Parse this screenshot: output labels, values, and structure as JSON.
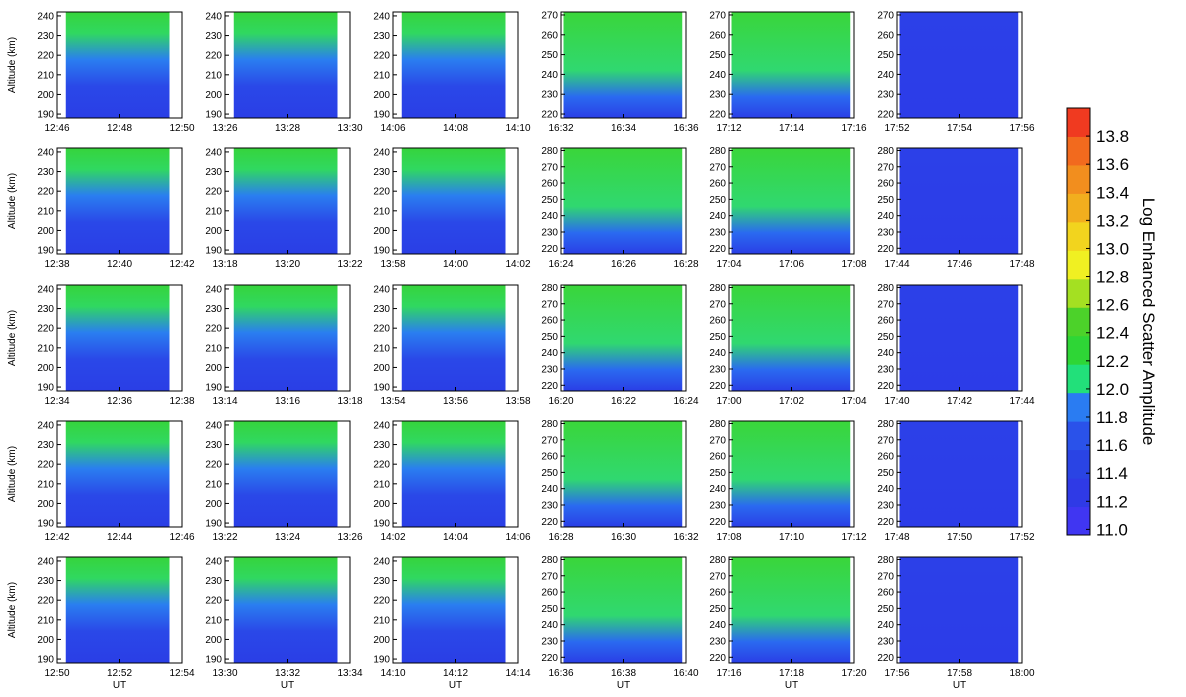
{
  "chart_data": [
    {
      "type": "heatmap",
      "ylabel": "Altitude (km)",
      "xlim": [
        766,
        770
      ],
      "xticks": [
        {
          "value": 766,
          "label": "12:46"
        },
        {
          "value": 768,
          "label": "12:48"
        },
        {
          "value": 770,
          "label": "12:50"
        }
      ],
      "ylim": [
        188,
        242
      ],
      "yticks": [
        190,
        200,
        210,
        220,
        230,
        240
      ]
    },
    {
      "type": "heatmap",
      "xlim": [
        806,
        810
      ],
      "xticks": [
        {
          "value": 806,
          "label": "13:26"
        },
        {
          "value": 808,
          "label": "13:28"
        },
        {
          "value": 810,
          "label": "13:30"
        }
      ],
      "ylim": [
        188,
        242
      ],
      "yticks": [
        190,
        200,
        210,
        220,
        230,
        240
      ]
    },
    {
      "type": "heatmap",
      "xlim": [
        846,
        850
      ],
      "xticks": [
        {
          "value": 846,
          "label": "14:06"
        },
        {
          "value": 848,
          "label": "14:08"
        },
        {
          "value": 850,
          "label": "14:10"
        }
      ],
      "ylim": [
        188,
        242
      ],
      "yticks": [
        190,
        200,
        210,
        220,
        230,
        240
      ]
    },
    {
      "type": "heatmap",
      "xlim": [
        992,
        996
      ],
      "xticks": [
        {
          "value": 992,
          "label": "16:32"
        },
        {
          "value": 994,
          "label": "16:34"
        },
        {
          "value": 996,
          "label": "16:36"
        }
      ],
      "ylim": [
        218,
        271.5
      ],
      "yticks": [
        220,
        230,
        240,
        250,
        260,
        270
      ]
    },
    {
      "type": "heatmap",
      "xlim": [
        1032,
        1036
      ],
      "xticks": [
        {
          "value": 1032,
          "label": "17:12"
        },
        {
          "value": 1034,
          "label": "17:14"
        },
        {
          "value": 1036,
          "label": "17:16"
        }
      ],
      "ylim": [
        218,
        271.5
      ],
      "yticks": [
        220,
        230,
        240,
        250,
        260,
        270
      ]
    },
    {
      "type": "heatmap",
      "xlim": [
        1072,
        1076
      ],
      "xticks": [
        {
          "value": 1072,
          "label": "17:52"
        },
        {
          "value": 1074,
          "label": "17:54"
        },
        {
          "value": 1076,
          "label": "17:56"
        }
      ],
      "ylim": [
        218,
        271.5
      ],
      "yticks": [
        220,
        230,
        240,
        250,
        260,
        270
      ]
    },
    {
      "type": "heatmap",
      "ylabel": "Altitude (km)",
      "xlim": [
        758,
        762
      ],
      "xticks": [
        {
          "value": 758,
          "label": "12:38"
        },
        {
          "value": 760,
          "label": "12:40"
        },
        {
          "value": 762,
          "label": "12:42"
        }
      ],
      "ylim": [
        188,
        242
      ],
      "yticks": [
        190,
        200,
        210,
        220,
        230,
        240
      ]
    },
    {
      "type": "heatmap",
      "xlim": [
        798,
        802
      ],
      "xticks": [
        {
          "value": 798,
          "label": "13:18"
        },
        {
          "value": 800,
          "label": "13:20"
        },
        {
          "value": 802,
          "label": "13:22"
        }
      ],
      "ylim": [
        188,
        242
      ],
      "yticks": [
        190,
        200,
        210,
        220,
        230,
        240
      ]
    },
    {
      "type": "heatmap",
      "xlim": [
        838,
        842
      ],
      "xticks": [
        {
          "value": 838,
          "label": "13:58"
        },
        {
          "value": 840,
          "label": "14:00"
        },
        {
          "value": 842,
          "label": "14:02"
        }
      ],
      "ylim": [
        188,
        242
      ],
      "yticks": [
        190,
        200,
        210,
        220,
        230,
        240
      ]
    },
    {
      "type": "heatmap",
      "xlim": [
        984,
        988
      ],
      "xticks": [
        {
          "value": 984,
          "label": "16:24"
        },
        {
          "value": 986,
          "label": "16:26"
        },
        {
          "value": 988,
          "label": "16:28"
        }
      ],
      "ylim": [
        216.5,
        281.5
      ],
      "yticks": [
        220,
        230,
        240,
        250,
        260,
        270,
        280
      ]
    },
    {
      "type": "heatmap",
      "xlim": [
        1024,
        1028
      ],
      "xticks": [
        {
          "value": 1024,
          "label": "17:04"
        },
        {
          "value": 1026,
          "label": "17:06"
        },
        {
          "value": 1028,
          "label": "17:08"
        }
      ],
      "ylim": [
        216.5,
        281.5
      ],
      "yticks": [
        220,
        230,
        240,
        250,
        260,
        270,
        280
      ]
    },
    {
      "type": "heatmap",
      "xlim": [
        1064,
        1068
      ],
      "xticks": [
        {
          "value": 1064,
          "label": "17:44"
        },
        {
          "value": 1066,
          "label": "17:46"
        },
        {
          "value": 1068,
          "label": "17:48"
        }
      ],
      "ylim": [
        216.5,
        281.5
      ],
      "yticks": [
        220,
        230,
        240,
        250,
        260,
        270,
        280
      ]
    },
    {
      "type": "heatmap",
      "ylabel": "Altitude (km)",
      "xlim": [
        754,
        758
      ],
      "xticks": [
        {
          "value": 754,
          "label": "12:34"
        },
        {
          "value": 756,
          "label": "12:36"
        },
        {
          "value": 758,
          "label": "12:38"
        }
      ],
      "ylim": [
        188,
        242
      ],
      "yticks": [
        190,
        200,
        210,
        220,
        230,
        240
      ]
    },
    {
      "type": "heatmap",
      "xlim": [
        794,
        798
      ],
      "xticks": [
        {
          "value": 794,
          "label": "13:14"
        },
        {
          "value": 796,
          "label": "13:16"
        },
        {
          "value": 798,
          "label": "13:18"
        }
      ],
      "ylim": [
        188,
        242
      ],
      "yticks": [
        190,
        200,
        210,
        220,
        230,
        240
      ]
    },
    {
      "type": "heatmap",
      "xlim": [
        834,
        838
      ],
      "xticks": [
        {
          "value": 834,
          "label": "13:54"
        },
        {
          "value": 836,
          "label": "13:56"
        },
        {
          "value": 838,
          "label": "13:58"
        }
      ],
      "ylim": [
        188,
        242
      ],
      "yticks": [
        190,
        200,
        210,
        220,
        230,
        240
      ]
    },
    {
      "type": "heatmap",
      "xlim": [
        980,
        984
      ],
      "xticks": [
        {
          "value": 980,
          "label": "16:20"
        },
        {
          "value": 982,
          "label": "16:22"
        },
        {
          "value": 984,
          "label": "16:24"
        }
      ],
      "ylim": [
        216.5,
        281.5
      ],
      "yticks": [
        220,
        230,
        240,
        250,
        260,
        270,
        280
      ]
    },
    {
      "type": "heatmap",
      "xlim": [
        1020,
        1024
      ],
      "xticks": [
        {
          "value": 1020,
          "label": "17:00"
        },
        {
          "value": 1022,
          "label": "17:02"
        },
        {
          "value": 1024,
          "label": "17:04"
        }
      ],
      "ylim": [
        216.5,
        281.5
      ],
      "yticks": [
        220,
        230,
        240,
        250,
        260,
        270,
        280
      ]
    },
    {
      "type": "heatmap",
      "xlim": [
        1060,
        1064
      ],
      "xticks": [
        {
          "value": 1060,
          "label": "17:40"
        },
        {
          "value": 1062,
          "label": "17:42"
        },
        {
          "value": 1064,
          "label": "17:44"
        }
      ],
      "ylim": [
        216.5,
        281.5
      ],
      "yticks": [
        220,
        230,
        240,
        250,
        260,
        270,
        280
      ]
    },
    {
      "type": "heatmap",
      "ylabel": "Altitude (km)",
      "xlim": [
        762,
        766
      ],
      "xticks": [
        {
          "value": 762,
          "label": "12:42"
        },
        {
          "value": 764,
          "label": "12:44"
        },
        {
          "value": 766,
          "label": "12:46"
        }
      ],
      "ylim": [
        188,
        242
      ],
      "yticks": [
        190,
        200,
        210,
        220,
        230,
        240
      ]
    },
    {
      "type": "heatmap",
      "xlim": [
        802,
        806
      ],
      "xticks": [
        {
          "value": 802,
          "label": "13:22"
        },
        {
          "value": 804,
          "label": "13:24"
        },
        {
          "value": 806,
          "label": "13:26"
        }
      ],
      "ylim": [
        188,
        242
      ],
      "yticks": [
        190,
        200,
        210,
        220,
        230,
        240
      ]
    },
    {
      "type": "heatmap",
      "xlim": [
        842,
        846
      ],
      "xticks": [
        {
          "value": 842,
          "label": "14:02"
        },
        {
          "value": 844,
          "label": "14:04"
        },
        {
          "value": 846,
          "label": "14:06"
        }
      ],
      "ylim": [
        188,
        242
      ],
      "yticks": [
        190,
        200,
        210,
        220,
        230,
        240
      ]
    },
    {
      "type": "heatmap",
      "xlim": [
        988,
        992
      ],
      "xticks": [
        {
          "value": 988,
          "label": "16:28"
        },
        {
          "value": 990,
          "label": "16:30"
        },
        {
          "value": 992,
          "label": "16:32"
        }
      ],
      "ylim": [
        216.5,
        281.5
      ],
      "yticks": [
        220,
        230,
        240,
        250,
        260,
        270,
        280
      ]
    },
    {
      "type": "heatmap",
      "xlim": [
        1028,
        1032
      ],
      "xticks": [
        {
          "value": 1028,
          "label": "17:08"
        },
        {
          "value": 1030,
          "label": "17:10"
        },
        {
          "value": 1032,
          "label": "17:12"
        }
      ],
      "ylim": [
        216.5,
        281.5
      ],
      "yticks": [
        220,
        230,
        240,
        250,
        260,
        270,
        280
      ]
    },
    {
      "type": "heatmap",
      "xlim": [
        1068,
        1072
      ],
      "xticks": [
        {
          "value": 1068,
          "label": "17:48"
        },
        {
          "value": 1070,
          "label": "17:50"
        },
        {
          "value": 1072,
          "label": "17:52"
        }
      ],
      "ylim": [
        216.5,
        281.5
      ],
      "yticks": [
        220,
        230,
        240,
        250,
        260,
        270,
        280
      ]
    },
    {
      "type": "heatmap",
      "ylabel": "Altitude (km)",
      "xlabel": "UT",
      "xlim": [
        770,
        774
      ],
      "xticks": [
        {
          "value": 770,
          "label": "12:50"
        },
        {
          "value": 772,
          "label": "12:52"
        },
        {
          "value": 774,
          "label": "12:54"
        }
      ],
      "ylim": [
        188,
        242
      ],
      "yticks": [
        190,
        200,
        210,
        220,
        230,
        240
      ]
    },
    {
      "type": "heatmap",
      "xlabel": "UT",
      "xlim": [
        810,
        814
      ],
      "xticks": [
        {
          "value": 810,
          "label": "13:30"
        },
        {
          "value": 812,
          "label": "13:32"
        },
        {
          "value": 814,
          "label": "13:34"
        }
      ],
      "ylim": [
        188,
        242
      ],
      "yticks": [
        190,
        200,
        210,
        220,
        230,
        240
      ]
    },
    {
      "type": "heatmap",
      "xlabel": "UT",
      "xlim": [
        850,
        854
      ],
      "xticks": [
        {
          "value": 850,
          "label": "14:10"
        },
        {
          "value": 852,
          "label": "14:12"
        },
        {
          "value": 854,
          "label": "14:14"
        }
      ],
      "ylim": [
        188,
        242
      ],
      "yticks": [
        190,
        200,
        210,
        220,
        230,
        240
      ]
    },
    {
      "type": "heatmap",
      "xlabel": "UT",
      "xlim": [
        996,
        1000
      ],
      "xticks": [
        {
          "value": 996,
          "label": "16:36"
        },
        {
          "value": 998,
          "label": "16:38"
        },
        {
          "value": 1000,
          "label": "16:40"
        }
      ],
      "ylim": [
        216.5,
        281.5
      ],
      "yticks": [
        220,
        230,
        240,
        250,
        260,
        270,
        280
      ]
    },
    {
      "type": "heatmap",
      "xlabel": "UT",
      "xlim": [
        1036,
        1040
      ],
      "xticks": [
        {
          "value": 1036,
          "label": "17:16"
        },
        {
          "value": 1038,
          "label": "17:18"
        },
        {
          "value": 1040,
          "label": "17:20"
        }
      ],
      "ylim": [
        216.5,
        281.5
      ],
      "yticks": [
        220,
        230,
        240,
        250,
        260,
        270,
        280
      ]
    },
    {
      "type": "heatmap",
      "xlabel": "UT",
      "xlim": [
        1076,
        1080
      ],
      "xticks": [
        {
          "value": 1076,
          "label": "17:56"
        },
        {
          "value": 1078,
          "label": "17:58"
        },
        {
          "value": 1080,
          "label": "18:00"
        }
      ],
      "ylim": [
        216.5,
        281.5
      ],
      "yticks": [
        220,
        230,
        240,
        250,
        260,
        270,
        280
      ]
    }
  ],
  "colorbar": {
    "title": "Log Enhanced Scatter Amplitude",
    "lim": [
      10.96,
      14.0
    ],
    "ticks": [
      {
        "value": 11,
        "label": "11.0"
      },
      {
        "value": 11.2,
        "label": "11.2"
      },
      {
        "value": 11.4,
        "label": "11.4"
      },
      {
        "value": 11.6,
        "label": "11.6"
      },
      {
        "value": 11.8,
        "label": "11.8"
      },
      {
        "value": 12,
        "label": "12.0"
      },
      {
        "value": 12.2,
        "label": "12.2"
      },
      {
        "value": 12.4,
        "label": "12.4"
      },
      {
        "value": 12.6,
        "label": "12.6"
      },
      {
        "value": 12.8,
        "label": "12.8"
      },
      {
        "value": 13,
        "label": "13.0"
      },
      {
        "value": 13.2,
        "label": "13.2"
      },
      {
        "value": 13.4,
        "label": "13.4"
      },
      {
        "value": 13.6,
        "label": "13.6"
      },
      {
        "value": 13.8,
        "label": "13.8"
      }
    ],
    "colors": [
      "#4036f2",
      "#2f3ae6",
      "#2a44e4",
      "#2a52ea",
      "#2a7cf2",
      "#22e07a",
      "#2ed636",
      "#4cd22a",
      "#a4e022",
      "#f0f022",
      "#f2d41e",
      "#f2ae1e",
      "#f28e1e",
      "#f26a1e",
      "#f03a20"
    ]
  }
}
